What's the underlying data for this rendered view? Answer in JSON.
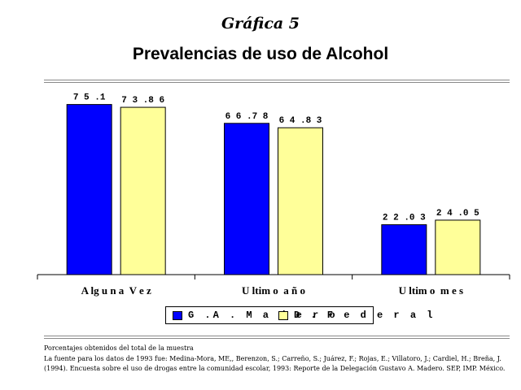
{
  "header": {
    "grafica_label": "Gráfica 5",
    "title": "Prevalencias de uso de Alcohol"
  },
  "colors": {
    "series_1": "#0000ff",
    "series_2": "#ffff99"
  },
  "chart_data": {
    "type": "bar",
    "title": "Prevalencias de uso de Alcohol",
    "categories": [
      "A lg u n a  V e z",
      "U ltim o  a ñ o",
      "U ltim o  m e s"
    ],
    "series": [
      {
        "name": "G .A . M a d e r o",
        "values": [
          75.1,
          66.78,
          22.03
        ],
        "labels": [
          "7 5 .1",
          "6 6 .7 8",
          "2 2 .0 3"
        ]
      },
      {
        "name": "D . F e d e r a l",
        "values": [
          73.86,
          64.83,
          24.05
        ],
        "labels": [
          "7 3 .8 6",
          "6 4 .8 3",
          "2 4 .0 5"
        ]
      }
    ],
    "ylim": [
      0,
      85
    ],
    "grid": false,
    "legend_position": "bottom"
  },
  "legend": {
    "items": [
      {
        "label": "G .A . M a d e r o"
      },
      {
        "label": "D . F e d e r a l"
      }
    ]
  },
  "notes": {
    "line1": "Porcentajes obtenidos del total de la muestra",
    "line2": "La fuente para los datos de 1993 fue: Medina-Mora, ME,, Berenzon, S.; Carreño, S.; Juárez, F.; Rojas, E.; Villatoro, J.; Cardiel, H.; Breña, J.",
    "line3": "(1994). Encuesta sobre el uso de drogas entre la comunidad escolar, 1993: Reporte de la Delegación Gustavo A. Madero. SEP, IMP. México."
  }
}
